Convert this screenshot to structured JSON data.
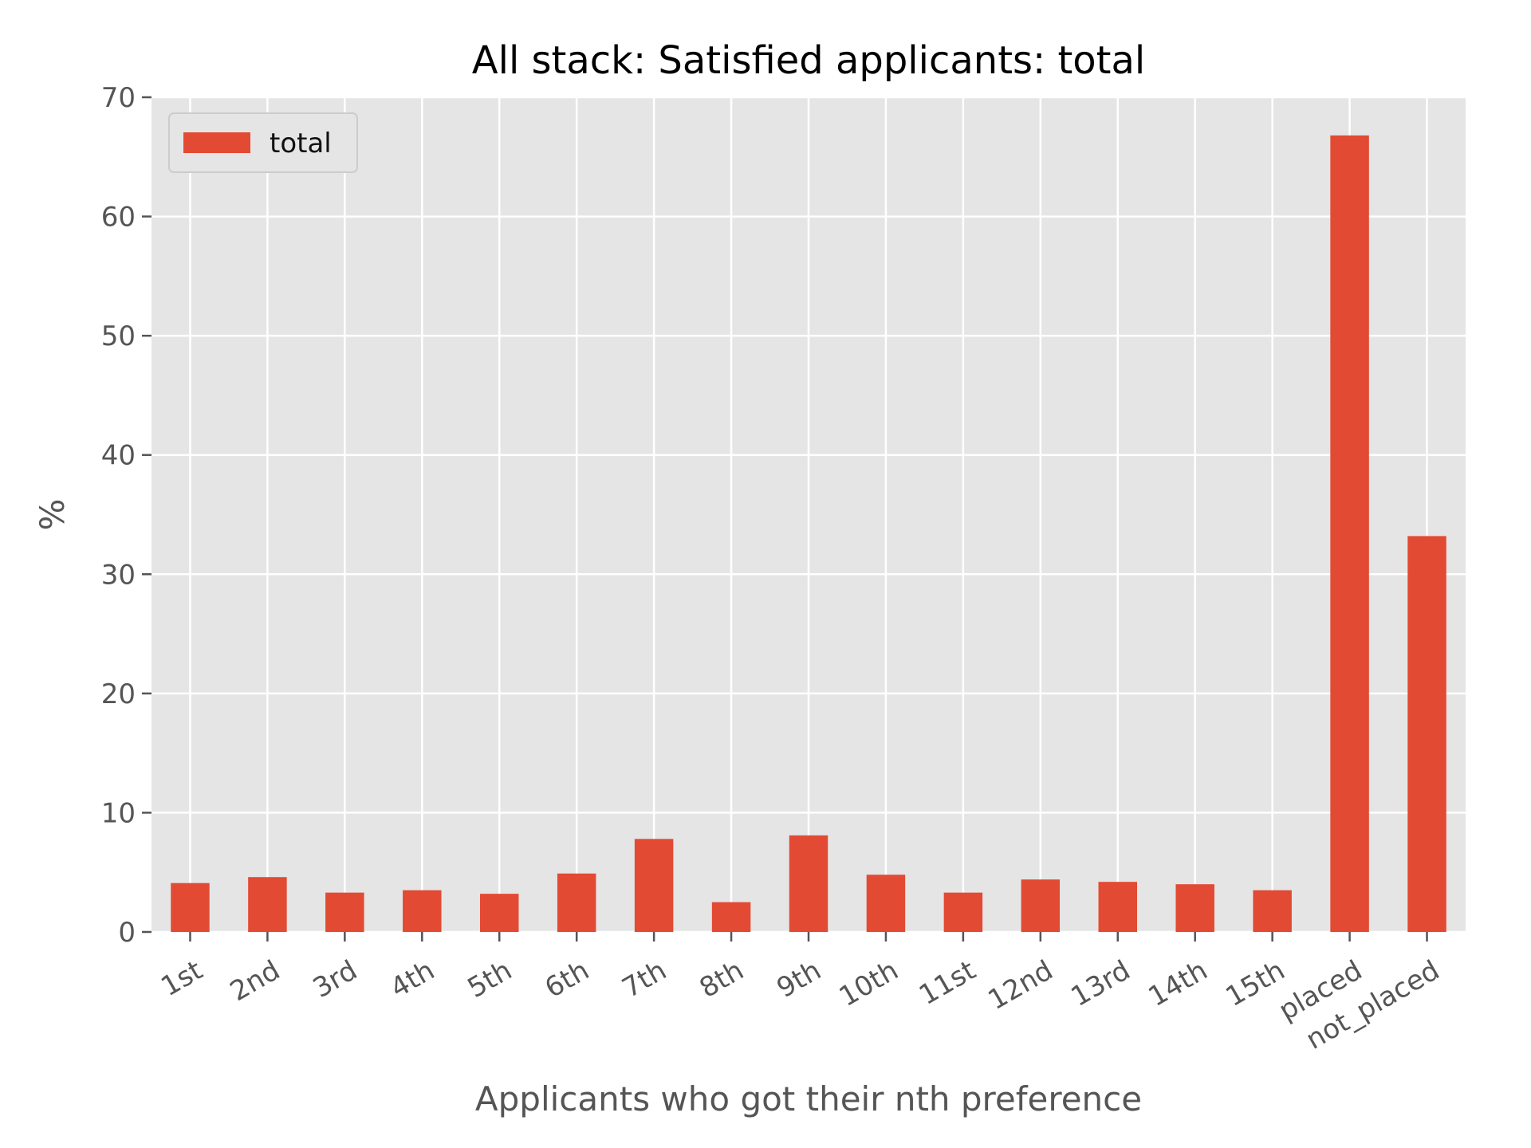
{
  "chart_data": {
    "type": "bar",
    "title": "All stack: Satisfied applicants: total",
    "xlabel": "Applicants who got their nth preference",
    "ylabel": "%",
    "categories": [
      "1st",
      "2nd",
      "3rd",
      "4th",
      "5th",
      "6th",
      "7th",
      "8th",
      "9th",
      "10th",
      "11st",
      "12nd",
      "13rd",
      "14th",
      "15th",
      "placed",
      "not_placed"
    ],
    "series": [
      {
        "name": "total",
        "values": [
          4.1,
          4.6,
          3.3,
          3.5,
          3.2,
          4.9,
          7.8,
          2.5,
          8.1,
          4.8,
          3.3,
          4.4,
          4.2,
          4.0,
          3.5,
          66.8,
          33.2
        ],
        "color": "#E24A33"
      }
    ],
    "ylim": [
      0,
      70
    ],
    "yticks": [
      0,
      10,
      20,
      30,
      40,
      50,
      60,
      70
    ],
    "grid": true,
    "legend_position": "top-left",
    "background_color": "#E5E5E5",
    "grid_color": "#FFFFFF"
  }
}
